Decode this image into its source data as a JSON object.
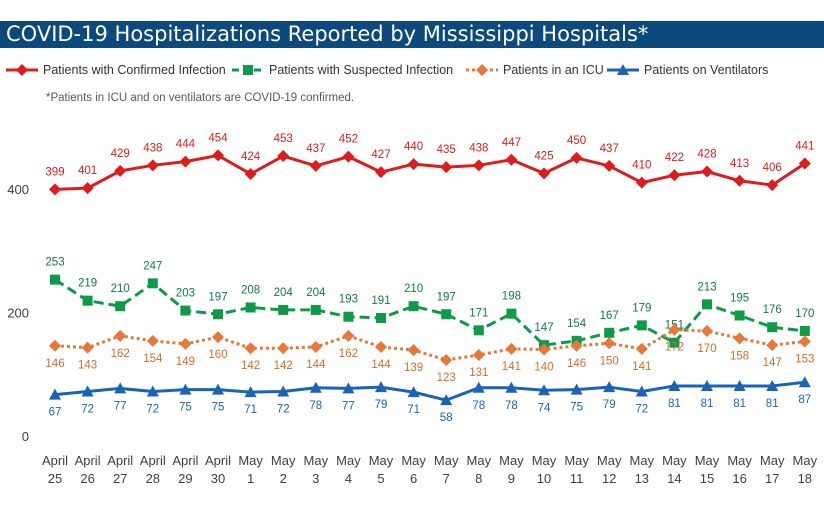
{
  "title": "COVID-19 Hospitalizations Reported by Mississippi Hospitals*",
  "note": "*Patients in ICU and on ventilators are COVID-19 confirmed.",
  "chart_data": {
    "type": "line",
    "title": "COVID-19 Hospitalizations Reported by Mississippi Hospitals*",
    "xlabel": "",
    "ylabel": "",
    "ylim": [
      0,
      500
    ],
    "yticks": [
      0,
      200,
      400
    ],
    "grid": false,
    "legend_position": "top",
    "categories": [
      [
        "April",
        "25"
      ],
      [
        "April",
        "26"
      ],
      [
        "April",
        "27"
      ],
      [
        "April",
        "28"
      ],
      [
        "April",
        "29"
      ],
      [
        "April",
        "30"
      ],
      [
        "May",
        "1"
      ],
      [
        "May",
        "2"
      ],
      [
        "May",
        "3"
      ],
      [
        "May",
        "4"
      ],
      [
        "May",
        "5"
      ],
      [
        "May",
        "6"
      ],
      [
        "May",
        "7"
      ],
      [
        "May",
        "8"
      ],
      [
        "May",
        "9"
      ],
      [
        "May",
        "10"
      ],
      [
        "May",
        "11"
      ],
      [
        "May",
        "12"
      ],
      [
        "May",
        "13"
      ],
      [
        "May",
        "14"
      ],
      [
        "May",
        "15"
      ],
      [
        "May",
        "16"
      ],
      [
        "May",
        "17"
      ],
      [
        "May",
        "18"
      ]
    ],
    "series": [
      {
        "name": "Patients with Confirmed Infection",
        "color": "#e01b1b",
        "marker": "diamond",
        "dash": "solid",
        "values": [
          399,
          401,
          429,
          438,
          444,
          454,
          424,
          453,
          437,
          452,
          427,
          440,
          435,
          438,
          447,
          425,
          450,
          437,
          410,
          422,
          428,
          413,
          406,
          441
        ]
      },
      {
        "name": "Patients with Suspected Infection",
        "color": "#0f9a48",
        "label_color": "#0e7f3c",
        "marker": "square",
        "dash": "dashed",
        "values": [
          253,
          219,
          210,
          247,
          203,
          197,
          208,
          204,
          204,
          193,
          191,
          210,
          197,
          171,
          198,
          147,
          154,
          167,
          179,
          151,
          213,
          195,
          176,
          170
        ]
      },
      {
        "name": "Patients in an ICU",
        "color": "#e8783a",
        "label_color": "#d96a2a",
        "marker": "diamond",
        "dash": "dotted",
        "values": [
          146,
          143,
          162,
          154,
          149,
          160,
          142,
          142,
          144,
          162,
          144,
          139,
          123,
          131,
          141,
          140,
          146,
          150,
          141,
          172,
          170,
          158,
          147,
          153
        ]
      },
      {
        "name": "Patients on Ventilators",
        "color": "#1a64b8",
        "label_color": "#1a64b8",
        "marker": "triangle",
        "dash": "solid",
        "values": [
          67,
          72,
          77,
          72,
          75,
          75,
          71,
          72,
          78,
          77,
          79,
          71,
          58,
          78,
          78,
          74,
          75,
          79,
          72,
          81,
          81,
          81,
          81,
          87
        ]
      }
    ]
  }
}
